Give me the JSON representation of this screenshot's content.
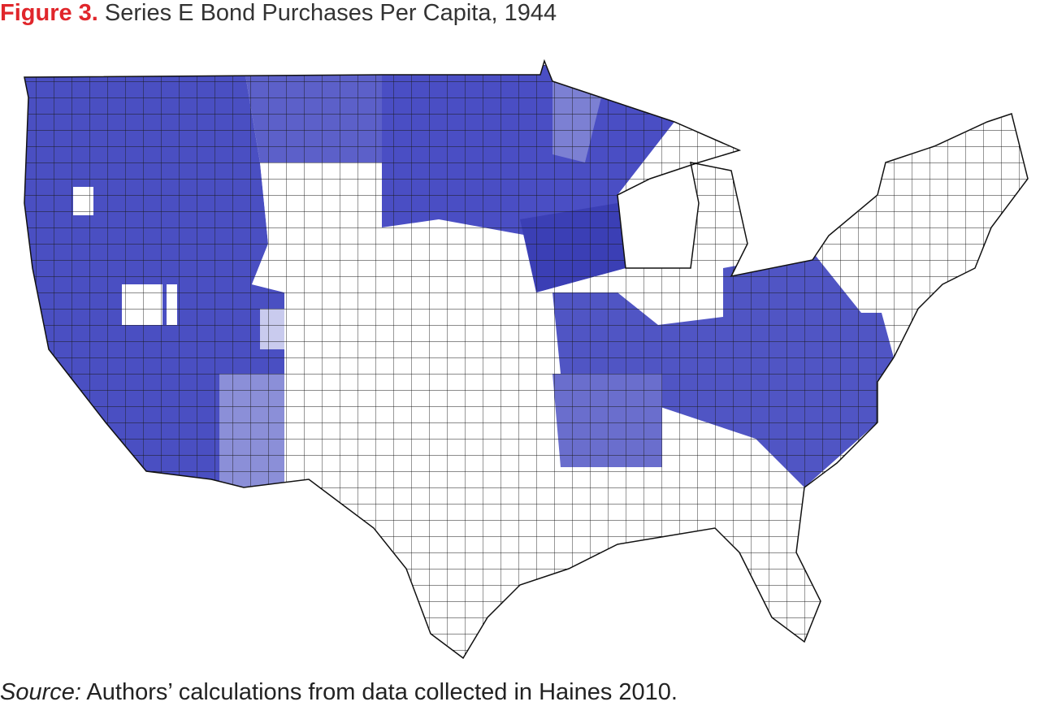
{
  "figure": {
    "label": "Figure 3.",
    "title": "Series E Bond Purchases Per Capita, 1944"
  },
  "source": {
    "label": "Source:",
    "text": "Authors’ calculations from data collected in Haines 2010."
  }
}
